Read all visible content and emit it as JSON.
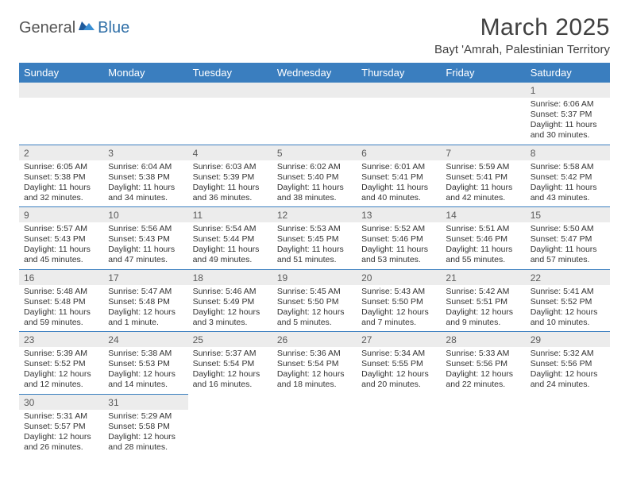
{
  "logo": {
    "general": "General",
    "blue": "Blue"
  },
  "title": "March 2025",
  "location": "Bayt 'Amrah, Palestinian Territory",
  "colors": {
    "header_bg": "#3a7ebf",
    "header_text": "#ffffff",
    "daynum_bg": "#ececec",
    "cell_border": "#3a7ebf",
    "title_color": "#404040"
  },
  "weekdays": [
    "Sunday",
    "Monday",
    "Tuesday",
    "Wednesday",
    "Thursday",
    "Friday",
    "Saturday"
  ],
  "weeks": [
    [
      null,
      null,
      null,
      null,
      null,
      null,
      {
        "n": "1",
        "sr": "6:06 AM",
        "ss": "5:37 PM",
        "dl": "11 hours and 30 minutes."
      }
    ],
    [
      {
        "n": "2",
        "sr": "6:05 AM",
        "ss": "5:38 PM",
        "dl": "11 hours and 32 minutes."
      },
      {
        "n": "3",
        "sr": "6:04 AM",
        "ss": "5:38 PM",
        "dl": "11 hours and 34 minutes."
      },
      {
        "n": "4",
        "sr": "6:03 AM",
        "ss": "5:39 PM",
        "dl": "11 hours and 36 minutes."
      },
      {
        "n": "5",
        "sr": "6:02 AM",
        "ss": "5:40 PM",
        "dl": "11 hours and 38 minutes."
      },
      {
        "n": "6",
        "sr": "6:01 AM",
        "ss": "5:41 PM",
        "dl": "11 hours and 40 minutes."
      },
      {
        "n": "7",
        "sr": "5:59 AM",
        "ss": "5:41 PM",
        "dl": "11 hours and 42 minutes."
      },
      {
        "n": "8",
        "sr": "5:58 AM",
        "ss": "5:42 PM",
        "dl": "11 hours and 43 minutes."
      }
    ],
    [
      {
        "n": "9",
        "sr": "5:57 AM",
        "ss": "5:43 PM",
        "dl": "11 hours and 45 minutes."
      },
      {
        "n": "10",
        "sr": "5:56 AM",
        "ss": "5:43 PM",
        "dl": "11 hours and 47 minutes."
      },
      {
        "n": "11",
        "sr": "5:54 AM",
        "ss": "5:44 PM",
        "dl": "11 hours and 49 minutes."
      },
      {
        "n": "12",
        "sr": "5:53 AM",
        "ss": "5:45 PM",
        "dl": "11 hours and 51 minutes."
      },
      {
        "n": "13",
        "sr": "5:52 AM",
        "ss": "5:46 PM",
        "dl": "11 hours and 53 minutes."
      },
      {
        "n": "14",
        "sr": "5:51 AM",
        "ss": "5:46 PM",
        "dl": "11 hours and 55 minutes."
      },
      {
        "n": "15",
        "sr": "5:50 AM",
        "ss": "5:47 PM",
        "dl": "11 hours and 57 minutes."
      }
    ],
    [
      {
        "n": "16",
        "sr": "5:48 AM",
        "ss": "5:48 PM",
        "dl": "11 hours and 59 minutes."
      },
      {
        "n": "17",
        "sr": "5:47 AM",
        "ss": "5:48 PM",
        "dl": "12 hours and 1 minute."
      },
      {
        "n": "18",
        "sr": "5:46 AM",
        "ss": "5:49 PM",
        "dl": "12 hours and 3 minutes."
      },
      {
        "n": "19",
        "sr": "5:45 AM",
        "ss": "5:50 PM",
        "dl": "12 hours and 5 minutes."
      },
      {
        "n": "20",
        "sr": "5:43 AM",
        "ss": "5:50 PM",
        "dl": "12 hours and 7 minutes."
      },
      {
        "n": "21",
        "sr": "5:42 AM",
        "ss": "5:51 PM",
        "dl": "12 hours and 9 minutes."
      },
      {
        "n": "22",
        "sr": "5:41 AM",
        "ss": "5:52 PM",
        "dl": "12 hours and 10 minutes."
      }
    ],
    [
      {
        "n": "23",
        "sr": "5:39 AM",
        "ss": "5:52 PM",
        "dl": "12 hours and 12 minutes."
      },
      {
        "n": "24",
        "sr": "5:38 AM",
        "ss": "5:53 PM",
        "dl": "12 hours and 14 minutes."
      },
      {
        "n": "25",
        "sr": "5:37 AM",
        "ss": "5:54 PM",
        "dl": "12 hours and 16 minutes."
      },
      {
        "n": "26",
        "sr": "5:36 AM",
        "ss": "5:54 PM",
        "dl": "12 hours and 18 minutes."
      },
      {
        "n": "27",
        "sr": "5:34 AM",
        "ss": "5:55 PM",
        "dl": "12 hours and 20 minutes."
      },
      {
        "n": "28",
        "sr": "5:33 AM",
        "ss": "5:56 PM",
        "dl": "12 hours and 22 minutes."
      },
      {
        "n": "29",
        "sr": "5:32 AM",
        "ss": "5:56 PM",
        "dl": "12 hours and 24 minutes."
      }
    ],
    [
      {
        "n": "30",
        "sr": "5:31 AM",
        "ss": "5:57 PM",
        "dl": "12 hours and 26 minutes."
      },
      {
        "n": "31",
        "sr": "5:29 AM",
        "ss": "5:58 PM",
        "dl": "12 hours and 28 minutes."
      },
      null,
      null,
      null,
      null,
      null
    ]
  ],
  "labels": {
    "sunrise": "Sunrise:",
    "sunset": "Sunset:",
    "daylight": "Daylight:"
  }
}
